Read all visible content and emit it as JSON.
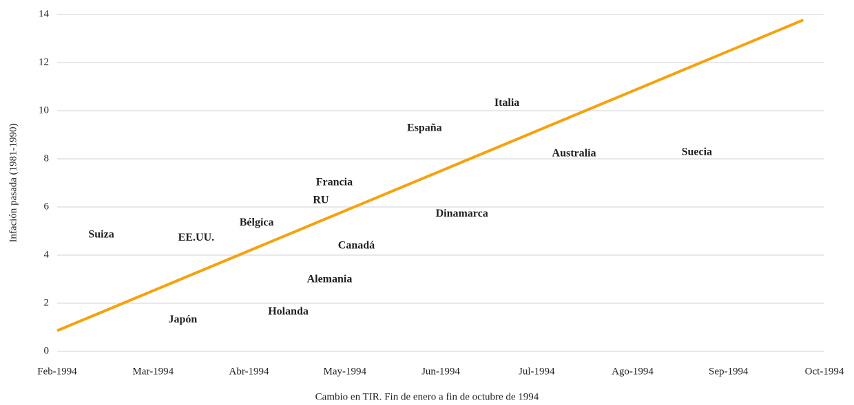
{
  "chart_data": {
    "type": "scatter",
    "xlabel": "Cambio en TIR. Fin de enero a fin de octubre de 1994",
    "ylabel": "Infación pasada (1981-1990)",
    "labels": [
      "Suiza",
      "EE.UU.",
      "Japón",
      "Bélgica",
      "Holanda",
      "Francia",
      "RU",
      "Canadá",
      "Alemania",
      "España",
      "Dinamarca",
      "Italia",
      "Australia",
      "Suecia"
    ],
    "x": [
      0.46,
      1.45,
      1.31,
      2.08,
      2.41,
      2.89,
      2.75,
      3.12,
      2.84,
      3.83,
      4.22,
      4.69,
      5.39,
      6.67
    ],
    "values": [
      4.83,
      4.71,
      1.31,
      5.34,
      1.63,
      7.0,
      6.26,
      4.37,
      2.97,
      9.26,
      5.71,
      10.31,
      8.2,
      8.26
    ],
    "trendline": {
      "x": [
        0,
        7.78
      ],
      "values": [
        0.86,
        13.77
      ],
      "color": "#f5a20f"
    },
    "xlim": [
      0,
      8
    ],
    "xticks": [
      {
        "value": 0,
        "label": "Feb-1994"
      },
      {
        "value": 1,
        "label": "Mar-1994"
      },
      {
        "value": 2,
        "label": "Abr-1994"
      },
      {
        "value": 3,
        "label": "May-1994"
      },
      {
        "value": 4,
        "label": "Jun-1994"
      },
      {
        "value": 5,
        "label": "Jul-1994"
      },
      {
        "value": 6,
        "label": "Ago-1994"
      },
      {
        "value": 7,
        "label": "Sep-1994"
      },
      {
        "value": 8,
        "label": "Oct-1994"
      }
    ],
    "ylim": [
      0,
      14
    ],
    "yticks": [
      0,
      2,
      4,
      6,
      8,
      10,
      12,
      14
    ],
    "grid": true
  }
}
